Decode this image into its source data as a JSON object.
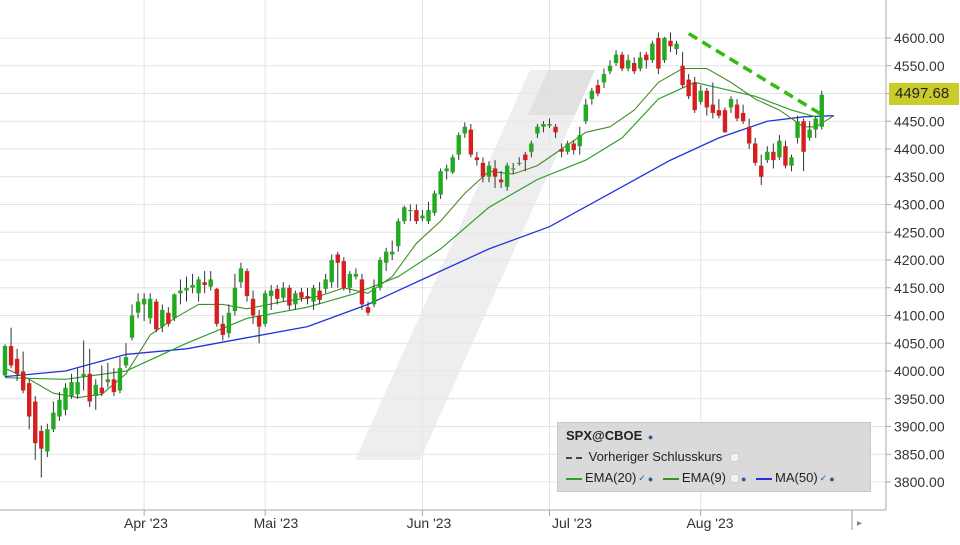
{
  "chart_data": {
    "type": "candlestick",
    "title": "",
    "xlabel": "",
    "ylabel": "",
    "ylim": [
      3770,
      4640
    ],
    "y_ticks": [
      "3800.00",
      "3850.00",
      "3900.00",
      "3950.00",
      "4000.00",
      "4050.00",
      "4100.00",
      "4150.00",
      "4200.00",
      "4250.00",
      "4300.00",
      "4350.00",
      "4400.00",
      "4450.00",
      "4500.00",
      "4550.00",
      "4600.00"
    ],
    "x_tick_labels": [
      "Apr '23",
      "Mai '23",
      "Jun '23",
      "Jul '23",
      "Aug '23"
    ],
    "grid": true,
    "last_price_label": "4497.68",
    "colors": {
      "up": "#22aa22",
      "down": "#d42020",
      "ema20": "#2ca02c",
      "ema9": "#4a8a2a",
      "ma50": "#2233dd",
      "trendline": "#33bb11",
      "badge": "#c9cc2a"
    },
    "candles": [
      [
        3992,
        4045,
        3990,
        4048
      ],
      [
        4045,
        4010,
        4005,
        4078
      ],
      [
        4022,
        3995,
        3982,
        4040
      ],
      [
        3999,
        3965,
        3960,
        4035
      ],
      [
        3978,
        3918,
        3895,
        3985
      ],
      [
        3945,
        3870,
        3840,
        3955
      ],
      [
        3892,
        3860,
        3808,
        3902
      ],
      [
        3855,
        3895,
        3845,
        3905
      ],
      [
        3895,
        3925,
        3890,
        3945
      ],
      [
        3918,
        3948,
        3910,
        3962
      ],
      [
        3930,
        3970,
        3920,
        3978
      ],
      [
        3955,
        3980,
        3950,
        3995
      ],
      [
        3958,
        3980,
        3950,
        4005
      ],
      [
        3990,
        3995,
        3965,
        4055
      ],
      [
        3995,
        3945,
        3935,
        4040
      ],
      [
        3955,
        3975,
        3930,
        3985
      ],
      [
        3970,
        3960,
        3955,
        4010
      ],
      [
        3980,
        3985,
        3970,
        4015
      ],
      [
        3985,
        3962,
        3955,
        4005
      ],
      [
        3965,
        4005,
        3960,
        4025
      ],
      [
        4010,
        4025,
        4005,
        4050
      ],
      [
        4060,
        4100,
        4055,
        4120
      ],
      [
        4105,
        4125,
        4095,
        4140
      ],
      [
        4120,
        4130,
        4090,
        4140
      ],
      [
        4095,
        4130,
        4085,
        4140
      ],
      [
        4125,
        4075,
        4070,
        4130
      ],
      [
        4080,
        4110,
        4070,
        4120
      ],
      [
        4105,
        4085,
        4080,
        4115
      ],
      [
        4095,
        4138,
        4090,
        4140
      ],
      [
        4140,
        4145,
        4120,
        4165
      ],
      [
        4145,
        4150,
        4125,
        4170
      ],
      [
        4150,
        4155,
        4140,
        4175
      ],
      [
        4140,
        4165,
        4125,
        4170
      ],
      [
        4160,
        4155,
        4140,
        4180
      ],
      [
        4152,
        4165,
        4145,
        4180
      ],
      [
        4148,
        4085,
        4080,
        4150
      ],
      [
        4085,
        4065,
        4055,
        4100
      ],
      [
        4068,
        4105,
        4060,
        4120
      ],
      [
        4108,
        4150,
        4100,
        4175
      ],
      [
        4160,
        4185,
        4150,
        4195
      ],
      [
        4180,
        4135,
        4125,
        4185
      ],
      [
        4130,
        4100,
        4085,
        4145
      ],
      [
        4100,
        4080,
        4050,
        4110
      ],
      [
        4085,
        4140,
        4080,
        4145
      ],
      [
        4135,
        4145,
        4110,
        4155
      ],
      [
        4148,
        4130,
        4120,
        4155
      ],
      [
        4132,
        4150,
        4125,
        4160
      ],
      [
        4150,
        4118,
        4110,
        4155
      ],
      [
        4120,
        4140,
        4110,
        4145
      ],
      [
        4142,
        4132,
        4125,
        4150
      ],
      [
        4135,
        4130,
        4120,
        4150
      ],
      [
        4125,
        4150,
        4110,
        4155
      ],
      [
        4145,
        4128,
        4120,
        4160
      ],
      [
        4148,
        4165,
        4140,
        4175
      ],
      [
        4160,
        4200,
        4150,
        4210
      ],
      [
        4210,
        4195,
        4150,
        4215
      ],
      [
        4198,
        4150,
        4145,
        4205
      ],
      [
        4150,
        4175,
        4140,
        4180
      ],
      [
        4170,
        4175,
        4165,
        4185
      ],
      [
        4165,
        4120,
        4110,
        4175
      ],
      [
        4115,
        4105,
        4100,
        4125
      ],
      [
        4120,
        4150,
        4115,
        4165
      ],
      [
        4150,
        4200,
        4145,
        4205
      ],
      [
        4195,
        4215,
        4180,
        4222
      ],
      [
        4210,
        4215,
        4200,
        4235
      ],
      [
        4225,
        4270,
        4215,
        4275
      ],
      [
        4270,
        4295,
        4265,
        4298
      ],
      [
        4290,
        4290,
        4270,
        4300
      ],
      [
        4290,
        4270,
        4265,
        4300
      ],
      [
        4275,
        4280,
        4270,
        4290
      ],
      [
        4270,
        4290,
        4265,
        4305
      ],
      [
        4285,
        4320,
        4280,
        4325
      ],
      [
        4318,
        4360,
        4310,
        4365
      ],
      [
        4360,
        4365,
        4345,
        4372
      ],
      [
        4358,
        4385,
        4355,
        4390
      ],
      [
        4390,
        4425,
        4380,
        4430
      ],
      [
        4428,
        4440,
        4420,
        4448
      ],
      [
        4435,
        4390,
        4385,
        4445
      ],
      [
        4385,
        4380,
        4370,
        4395
      ],
      [
        4375,
        4350,
        4340,
        4385
      ],
      [
        4350,
        4370,
        4340,
        4378
      ],
      [
        4365,
        4350,
        4330,
        4380
      ],
      [
        4345,
        4340,
        4330,
        4360
      ],
      [
        4332,
        4370,
        4325,
        4375
      ],
      [
        4365,
        4365,
        4355,
        4375
      ],
      [
        4375,
        4375,
        4370,
        4385
      ],
      [
        4390,
        4380,
        4360,
        4395
      ],
      [
        4395,
        4410,
        4385,
        4415
      ],
      [
        4428,
        4440,
        4420,
        4445
      ],
      [
        4440,
        4445,
        4430,
        4450
      ],
      [
        4442,
        4445,
        4438,
        4455
      ],
      [
        4440,
        4430,
        4420,
        4445
      ],
      [
        4400,
        4395,
        4385,
        4410
      ],
      [
        4395,
        4410,
        4390,
        4415
      ],
      [
        4410,
        4398,
        4390,
        4415
      ],
      [
        4405,
        4425,
        4390,
        4440
      ],
      [
        4450,
        4480,
        4445,
        4490
      ],
      [
        4490,
        4505,
        4480,
        4510
      ],
      [
        4515,
        4500,
        4495,
        4525
      ],
      [
        4520,
        4535,
        4510,
        4545
      ],
      [
        4540,
        4550,
        4535,
        4560
      ],
      [
        4555,
        4570,
        4550,
        4578
      ],
      [
        4570,
        4545,
        4540,
        4575
      ],
      [
        4545,
        4560,
        4540,
        4570
      ],
      [
        4555,
        4540,
        4535,
        4565
      ],
      [
        4545,
        4565,
        4540,
        4575
      ],
      [
        4570,
        4560,
        4545,
        4575
      ],
      [
        4560,
        4590,
        4555,
        4595
      ],
      [
        4600,
        4545,
        4535,
        4610
      ],
      [
        4560,
        4600,
        4555,
        4602
      ],
      [
        4595,
        4585,
        4575,
        4610
      ],
      [
        4580,
        4590,
        4570,
        4595
      ],
      [
        4550,
        4515,
        4510,
        4575
      ],
      [
        4525,
        4495,
        4490,
        4535
      ],
      [
        4520,
        4470,
        4465,
        4530
      ],
      [
        4485,
        4505,
        4480,
        4515
      ],
      [
        4505,
        4475,
        4460,
        4510
      ],
      [
        4480,
        4465,
        4455,
        4520
      ],
      [
        4470,
        4460,
        4455,
        4490
      ],
      [
        4470,
        4430,
        4430,
        4475
      ],
      [
        4475,
        4490,
        4465,
        4495
      ],
      [
        4480,
        4455,
        4450,
        4490
      ],
      [
        4465,
        4450,
        4445,
        4480
      ],
      [
        4440,
        4410,
        4400,
        4455
      ],
      [
        4410,
        4375,
        4370,
        4420
      ],
      [
        4370,
        4350,
        4335,
        4390
      ],
      [
        4380,
        4395,
        4375,
        4405
      ],
      [
        4395,
        4380,
        4365,
        4410
      ],
      [
        4385,
        4415,
        4380,
        4425
      ],
      [
        4405,
        4370,
        4365,
        4415
      ],
      [
        4370,
        4385,
        4360,
        4390
      ],
      [
        4420,
        4450,
        4410,
        4460
      ],
      [
        4450,
        4395,
        4360,
        4455
      ],
      [
        4420,
        4435,
        4415,
        4450
      ],
      [
        4435,
        4455,
        4420,
        4460
      ],
      [
        4440,
        4497.68,
        4435,
        4505
      ]
    ],
    "ema20": [
      [
        0,
        3988
      ],
      [
        10,
        3985
      ],
      [
        20,
        4000
      ],
      [
        30,
        4050
      ],
      [
        40,
        4095
      ],
      [
        50,
        4115
      ],
      [
        58,
        4140
      ],
      [
        65,
        4170
      ],
      [
        72,
        4220
      ],
      [
        80,
        4295
      ],
      [
        88,
        4345
      ],
      [
        96,
        4380
      ],
      [
        102,
        4420
      ],
      [
        108,
        4490
      ],
      [
        114,
        4520
      ],
      [
        118,
        4510
      ],
      [
        124,
        4495
      ],
      [
        130,
        4470
      ],
      [
        134,
        4458
      ]
    ],
    "ema9": [
      [
        0,
        4005
      ],
      [
        4,
        3985
      ],
      [
        8,
        3960
      ],
      [
        12,
        3952
      ],
      [
        16,
        3958
      ],
      [
        20,
        3995
      ],
      [
        24,
        4065
      ],
      [
        28,
        4095
      ],
      [
        32,
        4120
      ],
      [
        36,
        4120
      ],
      [
        40,
        4112
      ],
      [
        46,
        4125
      ],
      [
        52,
        4135
      ],
      [
        56,
        4150
      ],
      [
        60,
        4140
      ],
      [
        64,
        4170
      ],
      [
        68,
        4230
      ],
      [
        72,
        4270
      ],
      [
        76,
        4320
      ],
      [
        80,
        4360
      ],
      [
        84,
        4355
      ],
      [
        88,
        4370
      ],
      [
        92,
        4400
      ],
      [
        96,
        4430
      ],
      [
        100,
        4440
      ],
      [
        104,
        4470
      ],
      [
        108,
        4520
      ],
      [
        112,
        4545
      ],
      [
        116,
        4545
      ],
      [
        120,
        4520
      ],
      [
        124,
        4490
      ],
      [
        128,
        4470
      ],
      [
        132,
        4440
      ],
      [
        134,
        4440
      ],
      [
        137,
        4460
      ]
    ],
    "ma50": [
      [
        0,
        3990
      ],
      [
        10,
        4000
      ],
      [
        20,
        4030
      ],
      [
        30,
        4040
      ],
      [
        40,
        4060
      ],
      [
        50,
        4080
      ],
      [
        60,
        4120
      ],
      [
        70,
        4170
      ],
      [
        80,
        4220
      ],
      [
        90,
        4260
      ],
      [
        100,
        4320
      ],
      [
        110,
        4380
      ],
      [
        118,
        4420
      ],
      [
        126,
        4450
      ],
      [
        132,
        4458
      ],
      [
        137,
        4460
      ]
    ],
    "trendline": [
      [
        4608,
        113
      ],
      [
        4462,
        135
      ]
    ]
  },
  "legend": {
    "symbol": "SPX@CBOE",
    "prev_close": "Vorheriger Schlusskurs",
    "ema20": "EMA(20)",
    "ema9": "EMA(9)",
    "ma50": "MA(50)"
  }
}
